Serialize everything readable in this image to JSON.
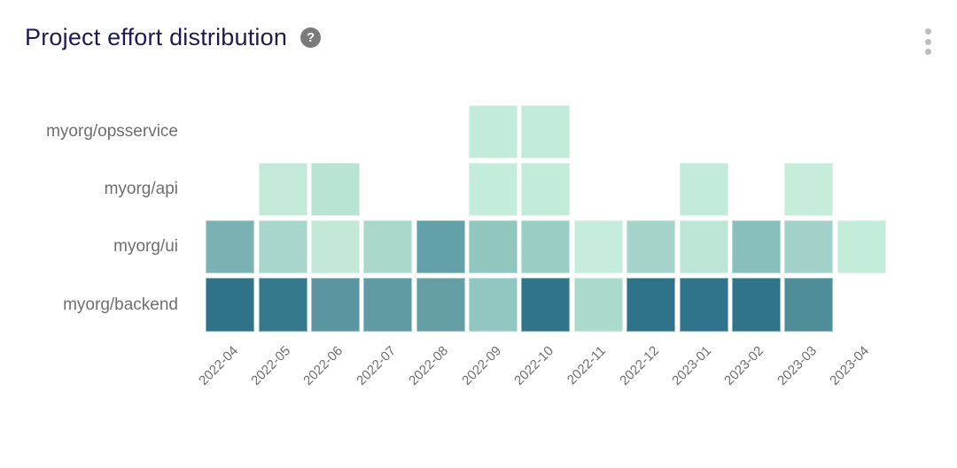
{
  "header": {
    "title": "Project effort distribution",
    "help_icon": "?"
  },
  "colors": {
    "background": "#ffffff",
    "title_text": "#1d1b4f",
    "row_label_text": "#6f6f6f",
    "axis_label_text": "#6e6e6e",
    "help_icon_bg": "#7a7a7a",
    "menu_dots": "#bdbdbd"
  },
  "chart_data": {
    "type": "heatmap",
    "title": "Project effort distribution",
    "x_categories": [
      "2022-04",
      "2022-05",
      "2022-06",
      "2022-07",
      "2022-08",
      "2022-09",
      "2022-10",
      "2022-11",
      "2022-12",
      "2023-01",
      "2023-02",
      "2023-03",
      "2023-04"
    ],
    "y_categories": [
      "myorg/opsservice",
      "myorg/api",
      "myorg/ui",
      "myorg/backend"
    ],
    "legend": "none",
    "color_scale": {
      "low": "#c7edda",
      "high": "#2d7187"
    },
    "rows": [
      {
        "label": "myorg/opsservice",
        "cell_colors": [
          null,
          null,
          null,
          null,
          null,
          "#c3ebd9",
          "#c2ead8",
          null,
          null,
          null,
          null,
          null,
          null
        ]
      },
      {
        "label": "myorg/api",
        "cell_colors": [
          null,
          "#c3ead9",
          "#b9e3d3",
          null,
          null,
          "#c4ecda",
          "#c2ebd9",
          null,
          null,
          "#c3ebd9",
          null,
          "#c5edda",
          null
        ]
      },
      {
        "label": "myorg/ui",
        "cell_colors": [
          "#7ab1b3",
          "#a9d6cb",
          "#c2e8d8",
          "#a9d8ca",
          "#64a0a9",
          "#91c6be",
          "#9acdc4",
          "#c5ecdc",
          "#a4d3ca",
          "#bce5d6",
          "#88bebb",
          "#a1d1c8",
          "#c3ecd9"
        ]
      },
      {
        "label": "myorg/backend",
        "cell_colors": [
          "#2f7389",
          "#357a8c",
          "#5b96a0",
          "#609aa3",
          "#669ea6",
          "#92c6c0",
          "#2f7488",
          "#abdacd",
          "#2e7389",
          "#2f748a",
          "#30748a",
          "#4f8d99",
          null
        ]
      }
    ]
  }
}
